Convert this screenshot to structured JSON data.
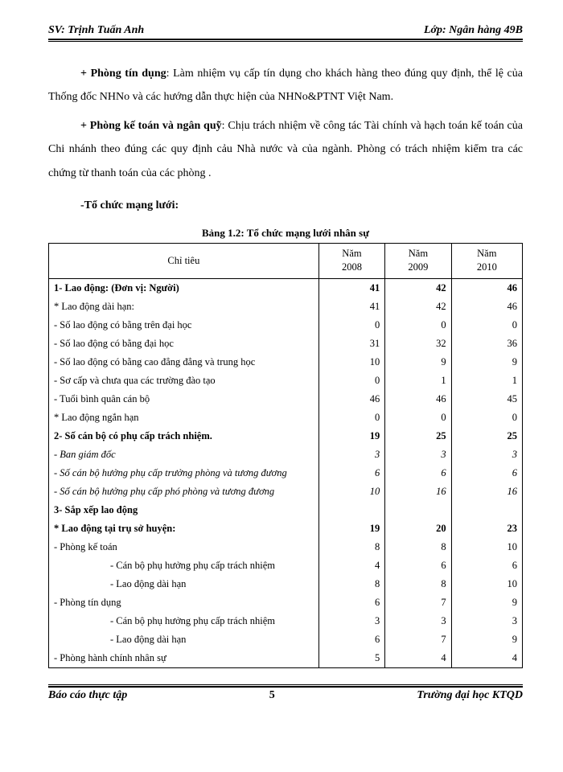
{
  "header": {
    "left": "SV: Trịnh Tuấn Anh",
    "right": "Lớp: Ngân hàng 49B"
  },
  "paragraphs": {
    "p1_lead": "+ Phòng tín dụng",
    "p1_rest": ": Làm nhiệm vụ cấp tín dụng cho khách hàng theo đúng quy định, thể lệ của Thống đốc NHNo và các hướng dẫn thực hiện của NHNo&PTNT Việt Nam.",
    "p2_lead": "+ Phòng kế toán và ngân quỹ",
    "p2_rest": ": Chịu trách nhiệm về công tác Tài chính và hạch toán kế toán của Chi nhánh theo đúng các quy định cảu Nhà nước và của ngành. Phòng có trách nhiệm kiểm tra các chứng từ thanh toán của các phòng .",
    "sub": "-Tổ chức mạng lưới:"
  },
  "table": {
    "caption": "Bảng 1.2: Tổ chức mạng lưới nhân sự",
    "columns": [
      "Chỉ tiêu",
      "Năm 2008",
      "Năm 2009",
      "Năm 2010"
    ],
    "rows": [
      {
        "label": "1- Lao động: (Đơn vị: Người)",
        "v": [
          "41",
          "42",
          "46"
        ],
        "bold": true
      },
      {
        "label": "* Lao động dài hạn:",
        "v": [
          "41",
          "42",
          "46"
        ]
      },
      {
        "label": "- Số lao động có bằng trên đại học",
        "v": [
          "0",
          "0",
          "0"
        ]
      },
      {
        "label": "- Số lao động có bằng đại học",
        "v": [
          "31",
          "32",
          "36"
        ]
      },
      {
        "label": "- Số lao động có bằng cao đẳng đẳng và trung học",
        "v": [
          "10",
          "9",
          "9"
        ]
      },
      {
        "label": "- Sơ cấp và chưa qua các trường đào tạo",
        "v": [
          "0",
          "1",
          "1"
        ]
      },
      {
        "label": "- Tuổi bình quân cán bộ",
        "v": [
          "46",
          "46",
          "45"
        ]
      },
      {
        "label": "* Lao động ngắn hạn",
        "v": [
          "0",
          "0",
          "0"
        ]
      },
      {
        "label": "2- Số cán bộ có phụ cấp trách nhiệm.",
        "v": [
          "19",
          "25",
          "25"
        ],
        "bold": true
      },
      {
        "label": "- Ban giám đốc",
        "v": [
          "3",
          "3",
          "3"
        ],
        "italic": true
      },
      {
        "label": "- Số cán bộ hưởng phụ cấp trưởng phòng và tương đương",
        "v": [
          "6",
          "6",
          "6"
        ],
        "italic": true
      },
      {
        "label": "- Số cán bộ hưởng phụ cấp phó phòng và tương đương",
        "v": [
          "10",
          "16",
          "16"
        ],
        "italic": true
      },
      {
        "label": "3- Sắp xếp lao động",
        "v": [
          "",
          "",
          ""
        ],
        "bold": true
      },
      {
        "label": "* Lao động tại trụ sở huyện:",
        "v": [
          "19",
          "20",
          "23"
        ],
        "bold": true
      },
      {
        "label": "- Phòng kế toán",
        "v": [
          "8",
          "8",
          "10"
        ]
      },
      {
        "label": "- Cán bộ phụ hưởng phụ cấp trách nhiệm",
        "v": [
          "4",
          "6",
          "6"
        ],
        "indent": 2
      },
      {
        "label": "- Lao động dài hạn",
        "v": [
          "8",
          "8",
          "10"
        ],
        "indent": 2
      },
      {
        "label": "- Phòng tín dụng",
        "v": [
          "6",
          "7",
          "9"
        ]
      },
      {
        "label": "- Cán bộ phụ hưởng phụ cấp trách nhiệm",
        "v": [
          "3",
          "3",
          "3"
        ],
        "indent": 2
      },
      {
        "label": "- Lao động dài hạn",
        "v": [
          "6",
          "7",
          "9"
        ],
        "indent": 2
      },
      {
        "label": "- Phòng hành chính nhân sự",
        "v": [
          "5",
          "4",
          "4"
        ]
      }
    ]
  },
  "footer": {
    "left": "Báo cáo thực tập",
    "page": "5",
    "right": "Trường đại học KTQD"
  }
}
